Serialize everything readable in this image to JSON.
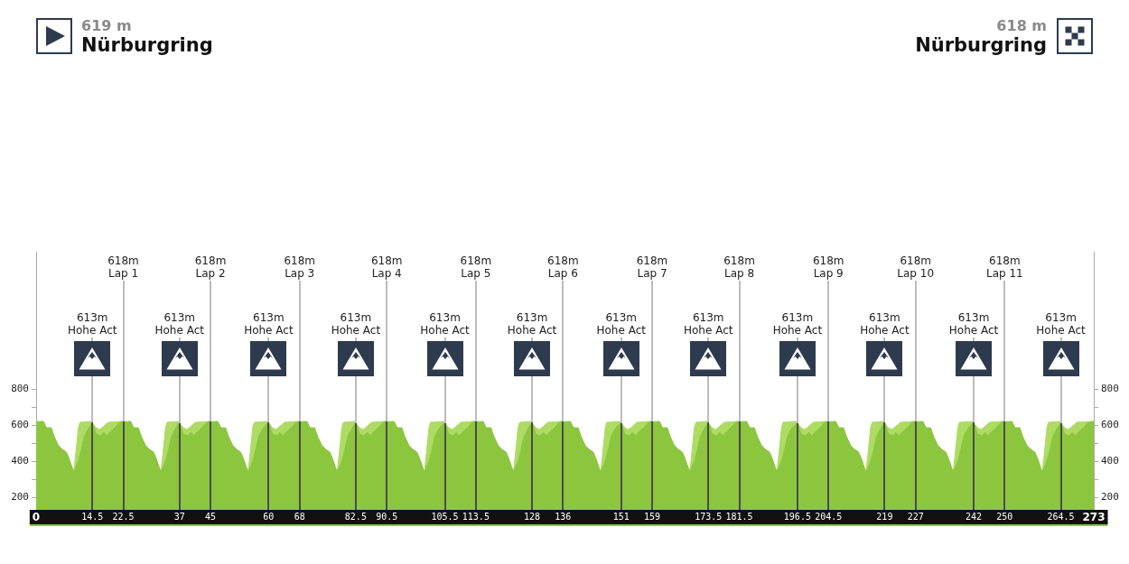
{
  "chart_data": {
    "type": "area",
    "xlim": [
      0,
      273
    ],
    "xticks": [
      0,
      14.5,
      22.5,
      37,
      45,
      60,
      68,
      82.5,
      90.5,
      105.5,
      113.5,
      128,
      136,
      151,
      159,
      173.5,
      181.5,
      196.5,
      204.5,
      219,
      227,
      242,
      250,
      264.5,
      273
    ],
    "ylim": [
      130,
      1560
    ],
    "yticks": [
      200,
      {
        "value": 300,
        "label": null
      },
      400,
      {
        "value": 500,
        "label": null
      },
      600,
      {
        "value": 700,
        "label": null
      },
      800
    ],
    "y2lim": [
      130,
      1560
    ],
    "y2ticks": [
      200,
      {
        "value": 300,
        "label": null
      },
      400,
      {
        "value": 500,
        "label": null
      },
      600,
      {
        "value": 700,
        "label": null
      },
      800
    ],
    "series": [
      {
        "color": "#8cc63f",
        "x": [
          0,
          1.9,
          2.7,
          3.9,
          4.7,
          5.8,
          6.8,
          7.8,
          8.5,
          9.7,
          10.9,
          11.7,
          12.4,
          13.6,
          14.5,
          15.5,
          16.7,
          17.4,
          18.2,
          19,
          20.6,
          21.3,
          22.1,
          22.5,
          24.4,
          25.2,
          26.4,
          27.2,
          28.3,
          29.3,
          30.3,
          31,
          32.2,
          33.4,
          34.2,
          34.9,
          36.1,
          37,
          38,
          39.2,
          39.9,
          40.7,
          41.5,
          43.1,
          43.8,
          44.6,
          45,
          46.9,
          47.7,
          48.9,
          49.7,
          50.8,
          51.8,
          52.8,
          53.5,
          54.7,
          55.9,
          56.7,
          57.4,
          58.6,
          60,
          61,
          62.2,
          62.9,
          63.7,
          64.5,
          66.1,
          66.8,
          67.6,
          68,
          69.9,
          70.7,
          71.9,
          72.7,
          73.8,
          74.8,
          75.8,
          76.5,
          77.7,
          78.9,
          79.7,
          80.4,
          81.6,
          82.5,
          83.5,
          84.7,
          85.4,
          86.2,
          87,
          88.6,
          89.3,
          90.1,
          90.5,
          92.4,
          93.2,
          94.4,
          95.2,
          96.3,
          97.3,
          98.3,
          99,
          100.2,
          101.4,
          102.2,
          102.9,
          104.1,
          105.5,
          106.5,
          107.7,
          108.4,
          109.2,
          110,
          111.6,
          112.3,
          113.1,
          113.5,
          115.4,
          116.2,
          117.4,
          118.2,
          119.3,
          120.3,
          121.3,
          122,
          123.2,
          124.4,
          125.2,
          125.9,
          127.1,
          128,
          129,
          130.2,
          130.9,
          131.7,
          132.5,
          134.1,
          134.8,
          135.6,
          136,
          137.9,
          138.7,
          139.9,
          140.7,
          141.8,
          142.8,
          143.8,
          144.5,
          145.7,
          146.9,
          147.7,
          148.4,
          149.6,
          151,
          152,
          153.2,
          153.9,
          154.7,
          155.5,
          157.1,
          157.8,
          158.6,
          159,
          160.9,
          161.7,
          162.9,
          163.7,
          164.8,
          165.8,
          166.8,
          167.5,
          168.7,
          169.9,
          170.7,
          171.4,
          172.6,
          173.5,
          174.5,
          175.7,
          176.4,
          177.2,
          178,
          179.6,
          180.3,
          181.1,
          181.5,
          183.4,
          184.2,
          185.4,
          186.2,
          187.3,
          188.3,
          189.3,
          190,
          191.2,
          192.4,
          193.2,
          193.9,
          195.1,
          196.5,
          197.5,
          198.7,
          199.4,
          200.2,
          201,
          202.6,
          203.3,
          204.1,
          204.5,
          206.4,
          207.2,
          208.4,
          209.2,
          210.3,
          211.3,
          212.3,
          213,
          214.2,
          215.4,
          216.2,
          216.9,
          218.1,
          219,
          220,
          221.2,
          221.9,
          222.7,
          223.5,
          225.1,
          225.8,
          226.6,
          227,
          228.9,
          229.7,
          230.9,
          231.7,
          232.8,
          233.8,
          234.8,
          235.5,
          236.7,
          237.9,
          238.7,
          239.4,
          240.6,
          242,
          243,
          244.2,
          244.9,
          245.7,
          246.5,
          248.1,
          248.8,
          249.6,
          250,
          251.9,
          252.7,
          253.9,
          254.7,
          255.8,
          256.8,
          257.8,
          258.5,
          259.7,
          260.9,
          261.7,
          262.4,
          263.6,
          264.5,
          265.5,
          266.7,
          267.4,
          268.2,
          269,
          270.6,
          271.3,
          272.6,
          273
        ],
        "values": [
          619,
          620,
          585,
          585,
          535,
          485,
          465,
          450,
          415,
          340,
          400,
          465,
          535,
          585,
          613,
          550,
          540,
          560,
          540,
          560,
          590,
          610,
          620,
          618,
          620,
          585,
          585,
          535,
          485,
          465,
          450,
          415,
          340,
          400,
          465,
          535,
          585,
          613,
          550,
          540,
          560,
          540,
          560,
          590,
          610,
          620,
          618,
          620,
          585,
          585,
          535,
          485,
          465,
          450,
          415,
          340,
          400,
          465,
          535,
          585,
          613,
          550,
          540,
          560,
          540,
          560,
          590,
          610,
          620,
          618,
          620,
          585,
          585,
          535,
          485,
          465,
          450,
          415,
          340,
          400,
          465,
          535,
          585,
          613,
          550,
          540,
          560,
          540,
          560,
          590,
          610,
          620,
          618,
          620,
          585,
          585,
          535,
          485,
          465,
          450,
          415,
          340,
          400,
          465,
          535,
          585,
          613,
          550,
          540,
          560,
          540,
          560,
          590,
          610,
          620,
          618,
          620,
          585,
          585,
          535,
          485,
          465,
          450,
          415,
          340,
          400,
          465,
          535,
          585,
          613,
          550,
          540,
          560,
          540,
          560,
          590,
          610,
          620,
          618,
          620,
          585,
          585,
          535,
          485,
          465,
          450,
          415,
          340,
          400,
          465,
          535,
          585,
          613,
          550,
          540,
          560,
          540,
          560,
          590,
          610,
          620,
          618,
          620,
          585,
          585,
          535,
          485,
          465,
          450,
          415,
          340,
          400,
          465,
          535,
          585,
          613,
          550,
          540,
          560,
          540,
          560,
          590,
          610,
          620,
          618,
          620,
          585,
          585,
          535,
          485,
          465,
          450,
          415,
          340,
          400,
          465,
          535,
          585,
          613,
          550,
          540,
          560,
          540,
          560,
          590,
          610,
          620,
          618,
          620,
          585,
          585,
          535,
          485,
          465,
          450,
          415,
          340,
          400,
          465,
          535,
          585,
          613,
          550,
          540,
          560,
          540,
          560,
          590,
          610,
          620,
          618,
          620,
          585,
          585,
          535,
          485,
          465,
          450,
          415,
          340,
          400,
          465,
          535,
          585,
          613,
          550,
          540,
          560,
          540,
          560,
          590,
          610,
          620,
          618,
          620,
          585,
          585,
          535,
          485,
          465,
          450,
          415,
          340,
          400,
          465,
          535,
          585,
          613,
          550,
          540,
          560,
          540,
          560,
          590,
          610,
          620,
          618
        ]
      },
      {
        "color": "#aedb63",
        "x": [
          9.7,
          10.1,
          10.5,
          10.9,
          11.3,
          14.2,
          15.5,
          16.3,
          17,
          17.8,
          18.6,
          22.1,
          22.5,
          32.2,
          32.6,
          33,
          33.4,
          33.8,
          36.7,
          38,
          38.8,
          39.5,
          40.3,
          41.1,
          44.6,
          45,
          54.7,
          55.1,
          55.5,
          55.9,
          56.3,
          59.7,
          61,
          61.8,
          62.5,
          63.3,
          64.1,
          67.6,
          68,
          77.7,
          78.1,
          78.5,
          78.9,
          79.3,
          82.2,
          83.5,
          84.3,
          85,
          85.8,
          86.6,
          90.1,
          90.5,
          100.2,
          100.6,
          101,
          101.4,
          101.8,
          105.2,
          106.5,
          107.3,
          108,
          108.8,
          109.6,
          113.1,
          113.5,
          123.2,
          123.6,
          124,
          124.4,
          124.8,
          127.7,
          129,
          129.8,
          130.5,
          131.3,
          132.1,
          135.6,
          136,
          145.7,
          146.1,
          146.5,
          146.9,
          147.3,
          150.7,
          152,
          152.8,
          153.5,
          154.3,
          155.1,
          158.6,
          159,
          168.7,
          169.1,
          169.5,
          169.9,
          170.3,
          173.2,
          174.5,
          175.3,
          176,
          176.8,
          177.6,
          181.1,
          181.5,
          191.2,
          191.6,
          192,
          192.4,
          192.8,
          196.2,
          197.5,
          198.3,
          199,
          199.8,
          200.6,
          204.1,
          204.5,
          214.2,
          214.6,
          215,
          215.4,
          215.8,
          218.7,
          220,
          220.8,
          221.5,
          222.3,
          223.1,
          226.6,
          227,
          236.7,
          237.1,
          237.5,
          237.9,
          238.3,
          241.7,
          243,
          243.8,
          244.5,
          245.3,
          246.1,
          249.6,
          250,
          259.7,
          260.1,
          260.5,
          260.9,
          261.3,
          264.2,
          265.5,
          266.3,
          267,
          267.8,
          268.6,
          272.6,
          273
        ],
        "values": [
          340,
          415,
          500,
          585,
          615,
          620,
          585,
          575,
          585,
          600,
          615,
          620,
          618,
          340,
          415,
          500,
          585,
          615,
          620,
          585,
          575,
          585,
          600,
          615,
          620,
          618,
          340,
          415,
          500,
          585,
          615,
          620,
          585,
          575,
          585,
          600,
          615,
          620,
          618,
          340,
          415,
          500,
          585,
          615,
          620,
          585,
          575,
          585,
          600,
          615,
          620,
          618,
          340,
          415,
          500,
          585,
          615,
          620,
          585,
          575,
          585,
          600,
          615,
          620,
          618,
          340,
          415,
          500,
          585,
          615,
          620,
          585,
          575,
          585,
          600,
          615,
          620,
          618,
          340,
          415,
          500,
          585,
          615,
          620,
          585,
          575,
          585,
          600,
          615,
          620,
          618,
          340,
          415,
          500,
          585,
          615,
          620,
          585,
          575,
          585,
          600,
          615,
          620,
          618,
          340,
          415,
          500,
          585,
          615,
          620,
          585,
          575,
          585,
          600,
          615,
          620,
          618,
          340,
          415,
          500,
          585,
          615,
          620,
          585,
          575,
          585,
          600,
          615,
          620,
          618,
          340,
          415,
          500,
          585,
          615,
          620,
          585,
          575,
          585,
          600,
          615,
          620,
          618,
          340,
          415,
          500,
          585,
          615,
          620,
          585,
          575,
          585,
          600,
          615,
          620,
          618
        ]
      }
    ],
    "ref_lines": [
      {
        "axis": "x",
        "value": 14.5,
        "label": "613m\nHohe Act"
      },
      {
        "axis": "x",
        "value": 22.5,
        "label": "618m\nLap 1"
      },
      {
        "axis": "x",
        "value": 37,
        "label": "613m\nHohe Act"
      },
      {
        "axis": "x",
        "value": 45,
        "label": "618m\nLap 2"
      },
      {
        "axis": "x",
        "value": 60,
        "label": "613m\nHohe Act"
      },
      {
        "axis": "x",
        "value": 68,
        "label": "618m\nLap 3"
      },
      {
        "axis": "x",
        "value": 82.5,
        "label": "613m\nHohe Act"
      },
      {
        "axis": "x",
        "value": 90.5,
        "label": "618m\nLap 4"
      },
      {
        "axis": "x",
        "value": 105.5,
        "label": "613m\nHohe Act"
      },
      {
        "axis": "x",
        "value": 113.5,
        "label": "618m\nLap 5"
      },
      {
        "axis": "x",
        "value": 128,
        "label": "613m\nHohe Act"
      },
      {
        "axis": "x",
        "value": 136,
        "label": "618m\nLap 6"
      },
      {
        "axis": "x",
        "value": 151,
        "label": "613m\nHohe Act"
      },
      {
        "axis": "x",
        "value": 159,
        "label": "618m\nLap 7"
      },
      {
        "axis": "x",
        "value": 173.5,
        "label": "613m\nHohe Act"
      },
      {
        "axis": "x",
        "value": 181.5,
        "label": "618m\nLap 8"
      },
      {
        "axis": "x",
        "value": 196.5,
        "label": "613m\nHohe Act"
      },
      {
        "axis": "x",
        "value": 204.5,
        "label": "618m\nLap 9"
      },
      {
        "axis": "x",
        "value": 219,
        "label": "613m\nHohe Act"
      },
      {
        "axis": "x",
        "value": 227,
        "label": "618m\nLap 10"
      },
      {
        "axis": "x",
        "value": 242,
        "label": "613m\nHohe Act"
      },
      {
        "axis": "x",
        "value": 250,
        "label": "618m\nLap 11"
      },
      {
        "axis": "x",
        "value": 264.5,
        "label": "613m\nHohe Act"
      }
    ],
    "annotations": [
      "619 m\nNürburgring",
      "618 m\nNürburgring"
    ]
  }
}
